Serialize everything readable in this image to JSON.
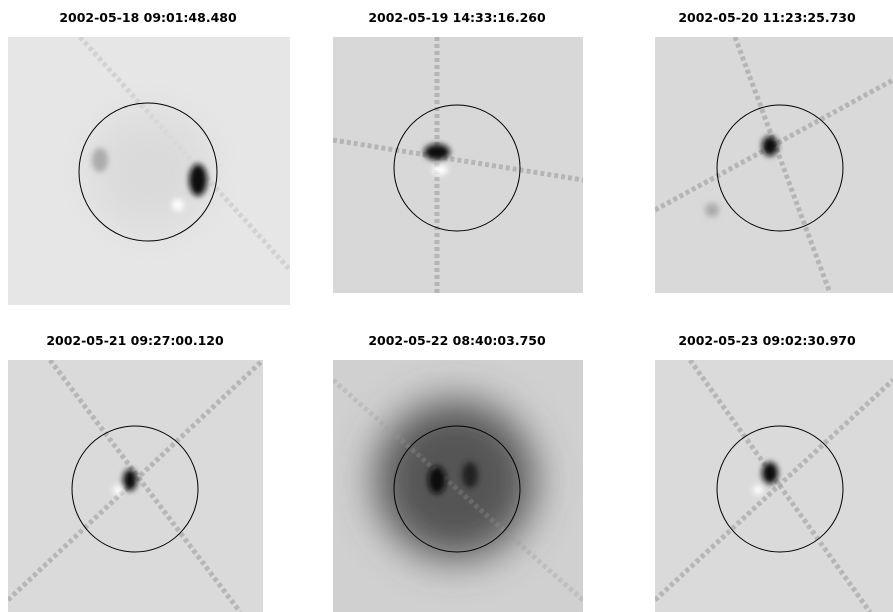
{
  "panels": [
    {
      "title": "2002-05-18 09:01:48.480"
    },
    {
      "title": "2002-05-19 14:33:16.260"
    },
    {
      "title": "2002-05-20 11:23:25.730"
    },
    {
      "title": "2002-05-21 09:27:00.120"
    },
    {
      "title": "2002-05-22 08:40:03.750"
    },
    {
      "title": "2002-05-23 09:02:30.970"
    }
  ]
}
